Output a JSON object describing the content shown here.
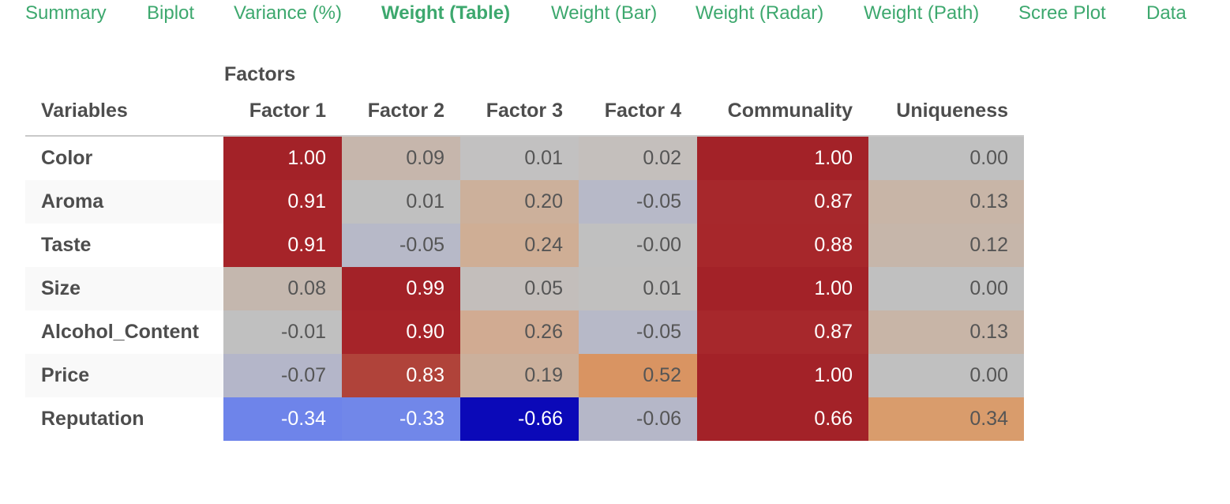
{
  "tabs": [
    {
      "label": "Summary",
      "active": false
    },
    {
      "label": "Biplot",
      "active": false
    },
    {
      "label": "Variance (%)",
      "active": false
    },
    {
      "label": "Weight (Table)",
      "active": true
    },
    {
      "label": "Weight (Bar)",
      "active": false
    },
    {
      "label": "Weight (Radar)",
      "active": false
    },
    {
      "label": "Weight (Path)",
      "active": false
    },
    {
      "label": "Scree Plot",
      "active": false
    },
    {
      "label": "Data",
      "active": false
    }
  ],
  "table": {
    "group_header": "Factors",
    "columns": [
      "Variables",
      "Factor 1",
      "Factor 2",
      "Factor 3",
      "Factor 4",
      "Communality",
      "Uniqueness"
    ],
    "rows": [
      {
        "variable": "Color",
        "values": [
          "1.00",
          "0.09",
          "0.01",
          "0.02",
          "1.00",
          "0.00"
        ],
        "colors": [
          "#a32228",
          "#c6b6ac",
          "#c2c1c1",
          "#c4bfbc",
          "#a32228",
          "#c0c0c0"
        ]
      },
      {
        "variable": "Aroma",
        "values": [
          "0.91",
          "0.01",
          "0.20",
          "-0.05",
          "0.87",
          "0.13"
        ],
        "colors": [
          "#a62429",
          "#c0c0c0",
          "#ccb09b",
          "#b7b9c8",
          "#a7282c",
          "#c8b5a7"
        ]
      },
      {
        "variable": "Taste",
        "values": [
          "0.91",
          "-0.05",
          "0.24",
          "-0.00",
          "0.88",
          "0.12"
        ],
        "colors": [
          "#a62429",
          "#b7b9c8",
          "#cfae95",
          "#c0c0c0",
          "#a7272b",
          "#c6b6aa"
        ]
      },
      {
        "variable": "Size",
        "values": [
          "0.08",
          "0.99",
          "0.05",
          "0.01",
          "1.00",
          "0.00"
        ],
        "colors": [
          "#c4b7ae",
          "#a32228",
          "#c3bebb",
          "#c1c0bf",
          "#a32228",
          "#c0c0c0"
        ]
      },
      {
        "variable": "Alcohol_Content",
        "values": [
          "-0.01",
          "0.90",
          "0.26",
          "-0.05",
          "0.87",
          "0.13"
        ],
        "colors": [
          "#c0c0c0",
          "#a62429",
          "#d1ab92",
          "#b7b9c8",
          "#a7282c",
          "#c8b5a7"
        ]
      },
      {
        "variable": "Price",
        "values": [
          "-0.07",
          "0.83",
          "0.19",
          "0.52",
          "1.00",
          "0.00"
        ],
        "colors": [
          "#b4b6c9",
          "#b0433a",
          "#cbb09c",
          "#d99462",
          "#a32228",
          "#c0c0c0"
        ]
      },
      {
        "variable": "Reputation",
        "values": [
          "-0.34",
          "-0.33",
          "-0.66",
          "-0.06",
          "0.66",
          "0.34"
        ],
        "colors": [
          "#6e84ea",
          "#7187e9",
          "#0b09b8",
          "#b5b7c8",
          "#a32228",
          "#d99c6c"
        ]
      }
    ]
  },
  "colors": {
    "tab_text": "#3da86e",
    "header_text": "#4d4d4d",
    "light_cell_text": "#555555",
    "dark_cell_text": "#ffffff"
  }
}
